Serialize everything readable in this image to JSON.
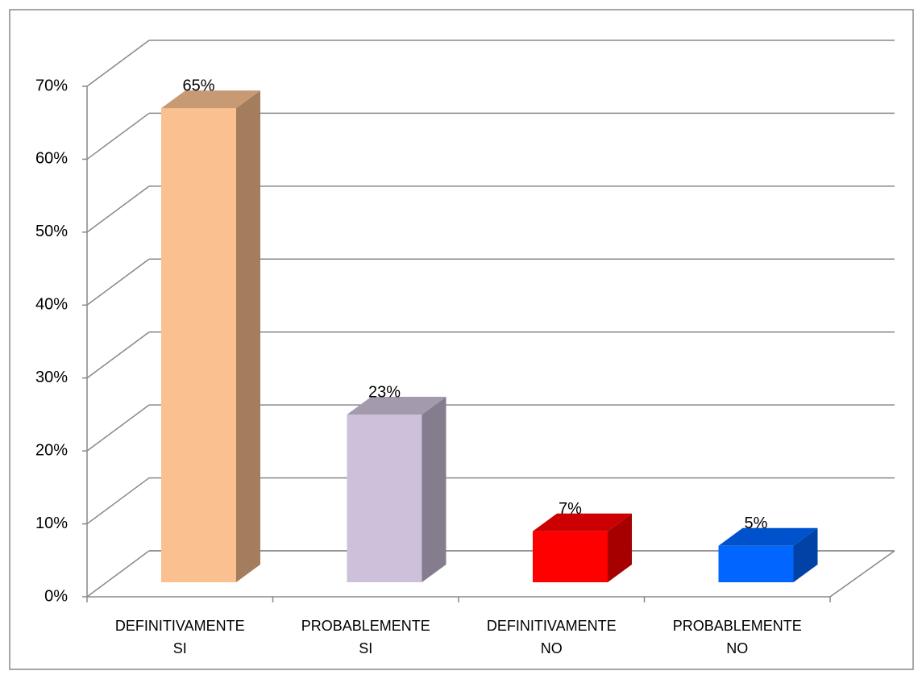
{
  "chart_data": {
    "type": "bar3d",
    "categories": [
      "DEFINITIVAMENTE SI",
      "PROBABLEMENTE SI",
      "DEFINITIVAMENTE NO",
      "PROBABLEMENTE NO"
    ],
    "values": [
      65,
      23,
      7,
      5
    ],
    "value_labels": [
      "65%",
      "23%",
      "7%",
      "5%"
    ],
    "colors": [
      "#fac090",
      "#ccc0da",
      "#ff0000",
      "#0066ff"
    ],
    "ylim": [
      0,
      70
    ],
    "yticks": [
      {
        "value": 0,
        "label": "0%"
      },
      {
        "value": 10,
        "label": "10%"
      },
      {
        "value": 20,
        "label": "20%"
      },
      {
        "value": 30,
        "label": "30%"
      },
      {
        "value": 40,
        "label": "40%"
      },
      {
        "value": 50,
        "label": "50%"
      },
      {
        "value": 60,
        "label": "60%"
      },
      {
        "value": 70,
        "label": "70%"
      }
    ],
    "grid": true
  }
}
